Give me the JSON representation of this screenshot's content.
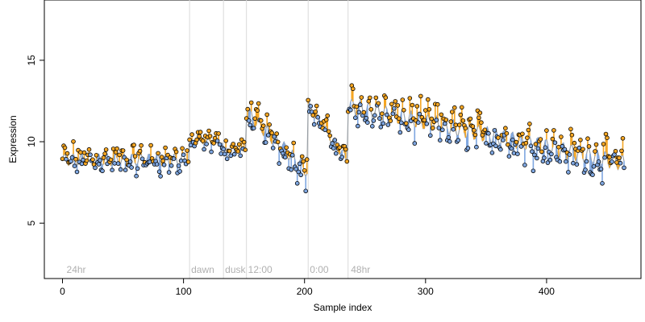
{
  "chart_data": {
    "type": "scatter",
    "title": "",
    "xlabel": "Sample index",
    "ylabel": "Expression",
    "xlim": [
      -15,
      478
    ],
    "ylim": [
      1.6,
      18.7
    ],
    "x_ticks": [
      0,
      100,
      200,
      300,
      400
    ],
    "y_ticks": [
      5,
      10,
      15
    ],
    "grid": false,
    "legend": "none",
    "markers": {
      "fill_above_fit": "#f5a623",
      "fill_below_fit": "#7ea6e0",
      "edge": "#000000"
    },
    "colors": {
      "fit_line": "#9aa0a6",
      "residual_up": "#f5a623",
      "residual_down": "#7ea6e0",
      "vline": "#d9d9d9"
    },
    "annotations": [
      {
        "label": "24hr",
        "x": 2,
        "y": 1.95
      },
      {
        "label": "dawn",
        "x": 105,
        "y": 1.95
      },
      {
        "label": "dusk",
        "x": 133,
        "y": 1.95
      },
      {
        "label": "12:00",
        "x": 152,
        "y": 1.95
      },
      {
        "label": "0:00",
        "x": 203,
        "y": 1.95
      },
      {
        "label": "48hr",
        "x": 237,
        "y": 1.95
      }
    ],
    "vlines": [
      105,
      133,
      152,
      203,
      236
    ],
    "segments": [
      {
        "x_start": 0,
        "x_end": 104,
        "level": 8.9,
        "amp": 0.6
      },
      {
        "x_start": 105,
        "x_end": 132,
        "level": 10.0,
        "amp": 0.3
      },
      {
        "x_start": 133,
        "x_end": 151,
        "level": 9.5,
        "amp": 0.3
      },
      {
        "x_start": 152,
        "x_end": 202,
        "level_start": 11.8,
        "level_end": 8.2,
        "amp": 0.7
      },
      {
        "x_start": 203,
        "x_end": 235,
        "level_start": 12.2,
        "level_end": 8.9,
        "amp": 0.5
      },
      {
        "x_start": 236,
        "x_end": 464,
        "level_start": 12.2,
        "level_end": 8.7,
        "amp": 0.8
      }
    ],
    "points_note": "",
    "sample_count": 465,
    "points": []
  }
}
